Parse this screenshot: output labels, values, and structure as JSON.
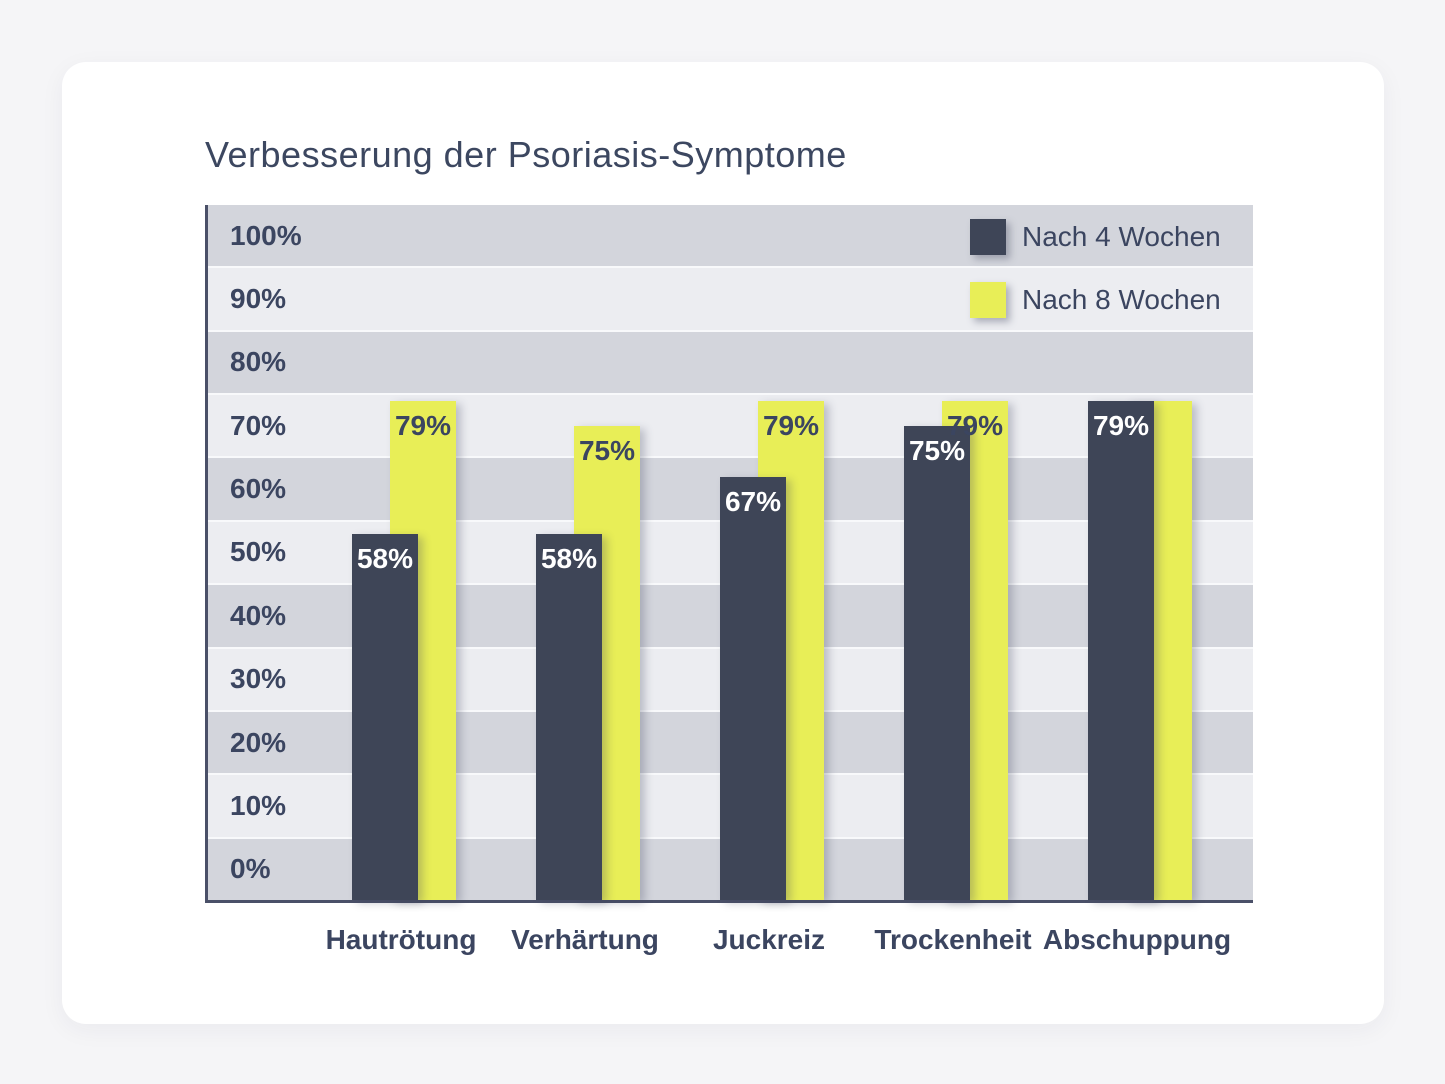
{
  "title": "Verbesserung der Psoriasis-Symptome",
  "legend": [
    {
      "label": "Nach 4 Wochen",
      "color": "#3e4557"
    },
    {
      "label": "Nach 8 Wochen",
      "color": "#e8ee57"
    }
  ],
  "chart_data": {
    "type": "bar",
    "title": "Verbesserung der Psoriasis-Symptome",
    "categories": [
      "Hautrötung",
      "Verhärtung",
      "Juckreiz",
      "Trockenheit",
      "Abschuppung"
    ],
    "series": [
      {
        "name": "Nach 4 Wochen",
        "color": "#3e4557",
        "label_color": "#ffffff",
        "values": [
          58,
          58,
          67,
          75,
          79
        ],
        "labels": [
          "58%",
          "58%",
          "67%",
          "75%",
          "79%"
        ]
      },
      {
        "name": "Nach 8 Wochen",
        "color": "#e8ee57",
        "label_color": "#3b4560",
        "values": [
          79,
          75,
          79,
          79,
          79
        ],
        "labels": [
          "79%",
          "75%",
          "79%",
          "79%",
          ""
        ]
      }
    ],
    "y_ticks": [
      "100%",
      "90%",
      "80%",
      "70%",
      "60%",
      "50%",
      "40%",
      "30%",
      "20%",
      "10%",
      "0%"
    ],
    "ylim": [
      0,
      110
    ],
    "xlabel": "",
    "ylabel": "",
    "grid": "alternating horizontal bands, dark #d3d5dc / light #ecedf1",
    "legend_position": "top-right inside plot"
  },
  "colors": {
    "page_background": "#f5f5f7",
    "card_background": "#ffffff",
    "band_dark": "#d3d5dc",
    "band_light": "#ecedf1",
    "axis_line": "#4a5068",
    "text_navy": "#3b4560",
    "series_navy": "#3e4557",
    "series_yellow": "#e8ee57"
  }
}
